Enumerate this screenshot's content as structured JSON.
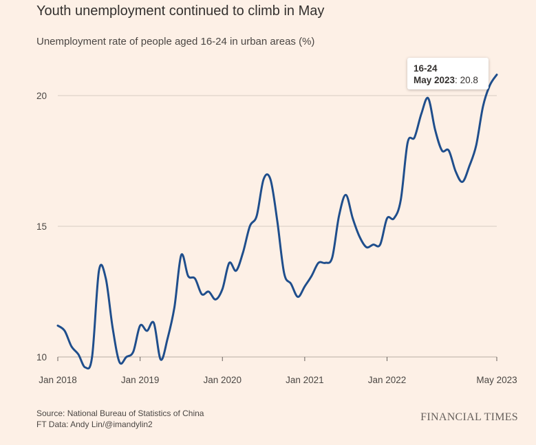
{
  "chart_data": {
    "type": "line",
    "title": "Youth unemployment continued to climb in May",
    "subtitle": "Unemployment rate of people aged 16-24 in urban areas (%)",
    "x_ticks": [
      "Jan 2018",
      "Jan 2019",
      "Jan 2020",
      "Jan 2021",
      "Jan 2022",
      "May 2023"
    ],
    "y_ticks": [
      10,
      15,
      20
    ],
    "ylim": [
      9.7,
      21
    ],
    "xlim": [
      "2018-01",
      "2023-05"
    ],
    "grid": true,
    "series": [
      {
        "name": "16-24",
        "color": "#1f4e8c",
        "x": [
          "2018-01",
          "2018-02",
          "2018-03",
          "2018-04",
          "2018-05",
          "2018-06",
          "2018-07",
          "2018-08",
          "2018-09",
          "2018-10",
          "2018-11",
          "2018-12",
          "2019-01",
          "2019-02",
          "2019-03",
          "2019-04",
          "2019-05",
          "2019-06",
          "2019-07",
          "2019-08",
          "2019-09",
          "2019-10",
          "2019-11",
          "2019-12",
          "2020-01",
          "2020-02",
          "2020-03",
          "2020-04",
          "2020-05",
          "2020-06",
          "2020-07",
          "2020-08",
          "2020-09",
          "2020-10",
          "2020-11",
          "2020-12",
          "2021-01",
          "2021-02",
          "2021-03",
          "2021-04",
          "2021-05",
          "2021-06",
          "2021-07",
          "2021-08",
          "2021-09",
          "2021-10",
          "2021-11",
          "2021-12",
          "2022-01",
          "2022-02",
          "2022-03",
          "2022-04",
          "2022-05",
          "2022-06",
          "2022-07",
          "2022-08",
          "2022-09",
          "2022-10",
          "2022-11",
          "2022-12",
          "2023-01",
          "2023-02",
          "2023-03",
          "2023-04",
          "2023-05"
        ],
        "values": [
          11.2,
          11.0,
          10.4,
          10.1,
          9.6,
          10.0,
          13.3,
          13.0,
          11.1,
          9.8,
          10.0,
          10.2,
          11.2,
          11.0,
          11.3,
          9.9,
          10.7,
          11.9,
          13.9,
          13.1,
          13.0,
          12.4,
          12.5,
          12.2,
          12.6,
          13.6,
          13.3,
          14.0,
          15.0,
          15.4,
          16.8,
          16.8,
          15.2,
          13.2,
          12.8,
          12.3,
          12.7,
          13.1,
          13.6,
          13.6,
          13.8,
          15.4,
          16.2,
          15.3,
          14.6,
          14.2,
          14.3,
          14.3,
          15.3,
          15.3,
          16.0,
          18.2,
          18.4,
          19.3,
          19.9,
          18.7,
          17.9,
          17.9,
          17.1,
          16.7,
          17.3,
          18.1,
          19.6,
          20.4,
          20.8
        ]
      }
    ],
    "tooltip": {
      "series": "16-24",
      "date": "May 2023",
      "value": "20.8"
    }
  },
  "footer": {
    "source_line1": "Source: National Bureau of Statistics of China",
    "source_line2": "FT Data: Andy Lin/@imandylin2",
    "logo": "FINANCIAL TIMES"
  }
}
